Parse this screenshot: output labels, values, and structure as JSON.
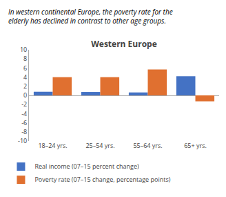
{
  "chart_data": {
    "type": "bar",
    "title": "Western Europe",
    "subtitle": [
      "In western continental Europe, the poverty rate for the",
      "elderly has declined in contrast to other age groups."
    ],
    "categories": [
      "18–24 yrs.",
      "25–54 yrs.",
      "55–64 yrs.",
      "65+ yrs."
    ],
    "series": [
      {
        "name": "Real income (07–15 percent change)",
        "color": "#4472c4",
        "values": [
          0.8,
          0.75,
          0.65,
          4.2
        ]
      },
      {
        "name": "Poverty rate (07–15 change, percentage points)",
        "color": "#e07030",
        "values": [
          4.0,
          4.0,
          5.7,
          -1.3
        ]
      }
    ],
    "ylim": [
      -10,
      10
    ],
    "yticks": [
      -10,
      -8,
      -6,
      -4,
      -2,
      0,
      2,
      4,
      6,
      8,
      10
    ],
    "grid": false,
    "legend": "bottom"
  }
}
